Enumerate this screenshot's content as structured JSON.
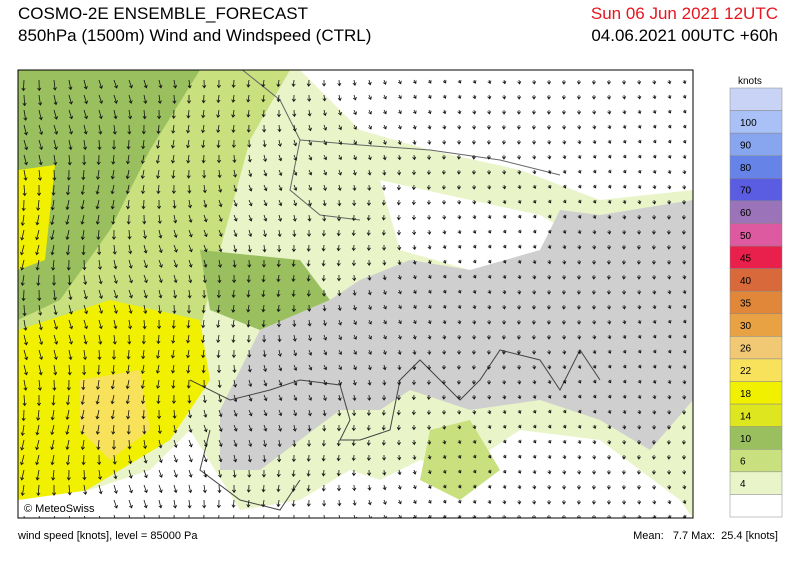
{
  "header": {
    "title": "COSMO-2E ENSEMBLE_FORECAST",
    "subtitle": "850hPa (1500m) Wind and Windspeed (CTRL)",
    "valid_time": "Sun 06 Jun 2021 12UTC",
    "run": "04.06.2021 00UTC +60h"
  },
  "map": {
    "credit": "© MeteoSwiss"
  },
  "colorbar": {
    "unit": "knots",
    "labels": [
      "100",
      "90",
      "80",
      "70",
      "60",
      "50",
      "45",
      "40",
      "35",
      "30",
      "26",
      "22",
      "18",
      "14",
      "10",
      "6",
      "4"
    ],
    "colors": [
      "#c9d3f6",
      "#a9c1f6",
      "#88a6ef",
      "#6684e8",
      "#5a5ce2",
      "#9a73b9",
      "#dd5aa1",
      "#e8204b",
      "#d8693a",
      "#e0873a",
      "#e9a243",
      "#f1c874",
      "#f8e25c",
      "#f0f000",
      "#dde61f",
      "#99bf5e",
      "#c9e07f",
      "#e9f4c9",
      "#ffffff"
    ]
  },
  "footer": {
    "left": "wind speed [knots], level = 85000 Pa",
    "stats": "Mean:   7.7 Max:  25.4 [knots]"
  }
}
